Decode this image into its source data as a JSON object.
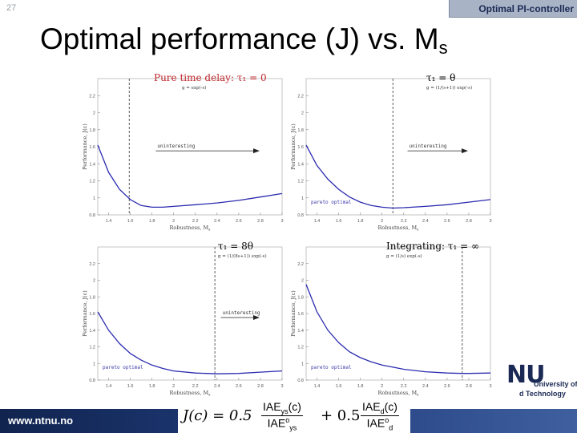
{
  "slide_number": "27",
  "badge": "Optimal PI-controller",
  "title_main": "Optimal performance (J) vs. M",
  "title_sub": "s",
  "footer_url": "www.ntnu.no",
  "logo": {
    "mark": "NU",
    "line1": "University of",
    "line2": "d Technology"
  },
  "formula": {
    "lhs": "J(c) = 0.5",
    "term1_num": "IAE",
    "term1_num_sub": "ys",
    "term1_num_arg": "(c)",
    "term1_den": "IAE",
    "term1_den_sup": "o",
    "term1_den_sub": "ys",
    "plus": "+ 0.5",
    "term2_num": "IAE",
    "term2_num_sub": "d",
    "term2_num_arg": "(c)",
    "term2_den": "IAE",
    "term2_den_sup": "o",
    "term2_den_sub": "d"
  },
  "colors": {
    "curve": "#2b2bb0",
    "badge_bg": "#a9b3c6",
    "footer": "#11244f",
    "red_title": "#c0272d"
  },
  "chart_data": [
    {
      "type": "line",
      "title": "Pure time delay: τ₁ = 0",
      "subtitle": "g = exp(-s)",
      "xlabel": "Robustness, M",
      "xlabel_sub": "s",
      "ylabel": "Performance, J(c)",
      "xlim": [
        1.3,
        3.0
      ],
      "ylim": [
        0.8,
        2.4
      ],
      "x_ticks": [
        "1.4",
        "1.6",
        "1.8",
        "2",
        "2.2",
        "2.4",
        "2.6",
        "2.8",
        "3"
      ],
      "y_ticks": [
        "0.8",
        "1",
        "1.2",
        "1.4",
        "1.6",
        "1.8",
        "2",
        "2.2"
      ],
      "annotations": [
        {
          "text": "uninteresting",
          "x": 1.85
        }
      ],
      "pareto_label": "",
      "cutoff_x": 1.59,
      "series": [
        {
          "x": [
            1.3,
            1.4,
            1.5,
            1.6,
            1.7,
            1.8,
            1.9,
            2.0,
            2.2,
            2.4,
            2.6,
            2.8,
            3.0
          ],
          "y": [
            1.62,
            1.3,
            1.1,
            0.98,
            0.91,
            0.89,
            0.89,
            0.9,
            0.92,
            0.94,
            0.97,
            1.01,
            1.05
          ]
        }
      ]
    },
    {
      "type": "line",
      "title": "τ₁ = θ",
      "subtitle": "g = (1/(s+1)) exp(-s)",
      "xlabel": "Robustness, M",
      "xlabel_sub": "s",
      "ylabel": "Performance, J(c)",
      "xlim": [
        1.3,
        3.0
      ],
      "ylim": [
        0.8,
        2.4
      ],
      "x_ticks": [
        "1.4",
        "1.6",
        "1.8",
        "2",
        "2.2",
        "2.4",
        "2.6",
        "2.8",
        "3"
      ],
      "y_ticks": [
        "0.8",
        "1",
        "1.2",
        "1.4",
        "1.6",
        "1.8",
        "2",
        "2.2"
      ],
      "annotations": [
        {
          "text": "uninteresting",
          "x": 2.25
        }
      ],
      "pareto_label": "pareto optimal",
      "cutoff_x": 2.1,
      "series": [
        {
          "x": [
            1.3,
            1.4,
            1.5,
            1.6,
            1.7,
            1.8,
            1.9,
            2.0,
            2.1,
            2.2,
            2.4,
            2.6,
            2.8,
            3.0
          ],
          "y": [
            1.62,
            1.38,
            1.22,
            1.1,
            1.01,
            0.95,
            0.91,
            0.89,
            0.88,
            0.885,
            0.9,
            0.92,
            0.95,
            0.98
          ]
        }
      ]
    },
    {
      "type": "line",
      "title": "τ₁ = 8θ",
      "subtitle": "g = (1/(8s+1)) exp(-s)",
      "xlabel": "Robustness, M",
      "xlabel_sub": "s",
      "ylabel": "Performance, J(c)",
      "xlim": [
        1.3,
        3.0
      ],
      "ylim": [
        0.8,
        2.4
      ],
      "x_ticks": [
        "1.4",
        "1.6",
        "1.8",
        "2",
        "2.2",
        "2.4",
        "2.6",
        "2.8",
        "3"
      ],
      "y_ticks": [
        "0.8",
        "1",
        "1.2",
        "1.4",
        "1.6",
        "1.8",
        "2",
        "2.2"
      ],
      "annotations": [
        {
          "text": "uninteresting",
          "x": 2.45
        }
      ],
      "pareto_label": "pareto optimal",
      "cutoff_x": 2.38,
      "series": [
        {
          "x": [
            1.3,
            1.4,
            1.5,
            1.6,
            1.7,
            1.8,
            1.9,
            2.0,
            2.2,
            2.4,
            2.6,
            2.8,
            3.0
          ],
          "y": [
            1.62,
            1.4,
            1.24,
            1.12,
            1.04,
            0.98,
            0.94,
            0.91,
            0.885,
            0.875,
            0.88,
            0.895,
            0.91
          ]
        }
      ]
    },
    {
      "type": "line",
      "title": "Integrating: τ₁ = ∞",
      "subtitle": "g = (1/s) exp(-s)",
      "xlabel": "Robustness, M",
      "xlabel_sub": "s",
      "ylabel": "Performance, J(c)",
      "xlim": [
        1.3,
        3.0
      ],
      "ylim": [
        0.8,
        2.4
      ],
      "x_ticks": [
        "1.4",
        "1.6",
        "1.8",
        "2",
        "2.2",
        "2.4",
        "2.6",
        "2.8",
        "3"
      ],
      "y_ticks": [
        "0.8",
        "1",
        "1.2",
        "1.4",
        "1.6",
        "1.8",
        "2",
        "2.2"
      ],
      "annotations": [],
      "pareto_label": "pareto optimal",
      "cutoff_x": 2.74,
      "series": [
        {
          "x": [
            1.3,
            1.4,
            1.5,
            1.6,
            1.7,
            1.8,
            1.9,
            2.0,
            2.2,
            2.4,
            2.6,
            2.74,
            2.8,
            3.0
          ],
          "y": [
            1.95,
            1.62,
            1.4,
            1.25,
            1.14,
            1.07,
            1.02,
            0.98,
            0.93,
            0.9,
            0.885,
            0.88,
            0.88,
            0.885
          ]
        }
      ]
    }
  ]
}
